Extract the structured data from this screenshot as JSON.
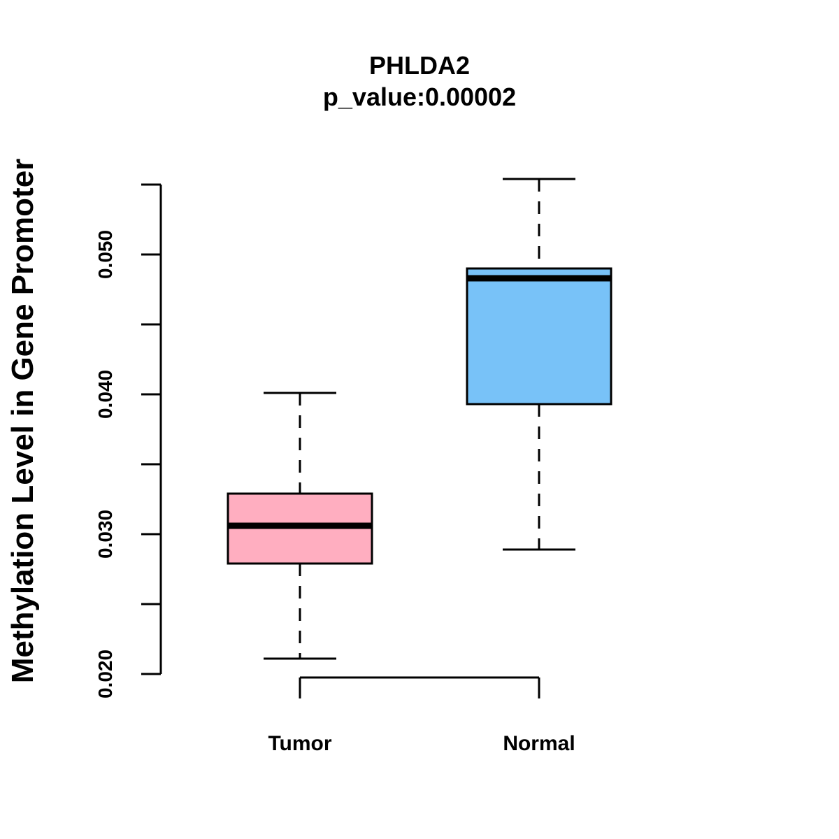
{
  "chart_data": {
    "type": "boxplot",
    "title": "PHLDA2",
    "subtitle": "p_value:0.00002",
    "ylabel": "Methylation Level in Gene Promoter",
    "xlabel": "",
    "ylim": [
      0.02,
      0.055
    ],
    "yticks": [
      0.02,
      0.025,
      0.03,
      0.035,
      0.04,
      0.045,
      0.05,
      0.055
    ],
    "ytick_labels": [
      "0.020",
      "",
      "0.030",
      "",
      "0.040",
      "",
      "0.050",
      ""
    ],
    "categories": [
      "Tumor",
      "Normal"
    ],
    "series": [
      {
        "name": "Tumor",
        "color": "#FFAEC0",
        "whisker_low": 0.0211,
        "q1": 0.0279,
        "median": 0.0306,
        "q3": 0.0329,
        "whisker_high": 0.0401
      },
      {
        "name": "Normal",
        "color": "#78C2F8",
        "whisker_low": 0.0289,
        "q1": 0.0393,
        "median": 0.0483,
        "q3": 0.049,
        "whisker_high": 0.0554
      }
    ],
    "grid": false,
    "legend": "none"
  }
}
